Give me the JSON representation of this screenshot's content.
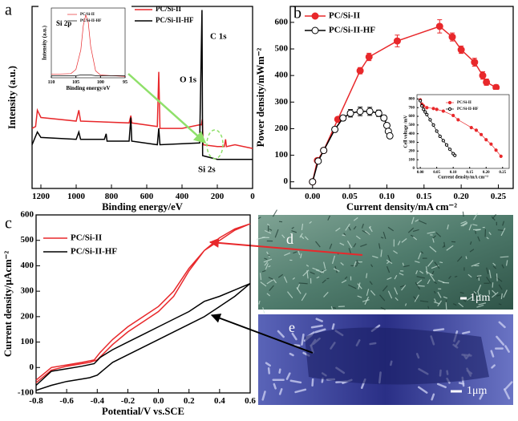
{
  "chart_data": [
    {
      "type": "line",
      "panel_label": "a",
      "xlabel": "Binding energy/eV",
      "ylabel": "Intensity (a.u.)",
      "xlim": [
        1250,
        0
      ],
      "ylim": [
        0,
        100
      ],
      "xticks": [
        1200,
        1000,
        800,
        600,
        400,
        200,
        0
      ],
      "series": [
        {
          "name": "PC/Si-II",
          "color": "#e8282b",
          "x": [
            1250,
            1230,
            1220,
            1200,
            1000,
            985,
            975,
            700,
            690,
            685,
            540,
            532,
            525,
            400,
            300,
            290,
            285,
            280,
            200,
            160,
            153,
            148,
            100,
            0
          ],
          "values": [
            33,
            34,
            43,
            39,
            37,
            43,
            37,
            36,
            40,
            36,
            34,
            64,
            33,
            33,
            35,
            35,
            38,
            24,
            23,
            23,
            27,
            23,
            24,
            22
          ]
        },
        {
          "name": "PC/Si-II-HF",
          "color": "#000000",
          "x": [
            1250,
            1220,
            1200,
            1000,
            985,
            975,
            840,
            830,
            825,
            700,
            690,
            685,
            540,
            532,
            525,
            300,
            287,
            283,
            200,
            0
          ],
          "values": [
            24,
            31,
            28,
            27,
            31,
            27,
            27,
            30,
            26,
            26,
            39,
            26,
            24,
            33,
            24,
            25,
            98,
            18,
            16,
            16
          ]
        }
      ],
      "annotations": [
        "O 1s",
        "C 1s",
        "Si 2s"
      ]
    },
    {
      "type": "line",
      "xlabel": "Binding energy/eV",
      "ylabel": "Intensity (a.u.)",
      "xlim": [
        110,
        95
      ],
      "ylim": [
        0,
        100
      ],
      "xticks": [
        110,
        105,
        100,
        95
      ],
      "series": [
        {
          "name": "PC/Si-II",
          "color": "#e8282b",
          "x": [
            110,
            106,
            105,
            104,
            103.5,
            103,
            102.5,
            102,
            101,
            100,
            95
          ],
          "values": [
            5,
            6,
            12,
            40,
            75,
            90,
            80,
            45,
            10,
            4,
            2
          ]
        },
        {
          "name": "PC/Si-II-HF",
          "color": "#000000",
          "x": [
            110,
            106,
            105,
            104,
            103.5,
            103,
            102.5,
            102,
            101,
            100,
            95
          ],
          "values": [
            3,
            3,
            3,
            4,
            4,
            4,
            4,
            4,
            3,
            3,
            3
          ]
        }
      ],
      "annotations": [
        "Si 2p"
      ]
    },
    {
      "type": "line",
      "panel_label": "b",
      "xlabel": "Current density/mA cm⁻²",
      "ylabel": "Power density/mWm⁻²",
      "xlim": [
        -0.03,
        0.27
      ],
      "ylim": [
        -25,
        660
      ],
      "markers": true,
      "xticks": [
        {
          "value": 0,
          "label": "0.00"
        },
        0.05,
        {
          "value": 0.1,
          "label": "0.10"
        },
        0.15,
        {
          "value": 0.2,
          "label": "0.20"
        },
        0.25
      ],
      "yticks": [
        0,
        100,
        200,
        300,
        400,
        500,
        600
      ],
      "series": [
        {
          "name": "PC/Si-II",
          "color": "#e8282b",
          "x": [
            0,
            0.0065,
            0.015,
            0.034,
            0.064,
            0.076,
            0.114,
            0.171,
            0.188,
            0.2,
            0.218,
            0.229,
            0.234,
            0.247
          ],
          "values": [
            0,
            80,
            118,
            235,
            418,
            470,
            530,
            585,
            545,
            497,
            450,
            400,
            375,
            355
          ],
          "errors": [
            0,
            5,
            6,
            8,
            12,
            14,
            22,
            25,
            15,
            14,
            15,
            14,
            12,
            10
          ]
        },
        {
          "name": "PC/Si-II-HF",
          "color": "#000000",
          "x": [
            0,
            0.0076,
            0.015,
            0.03,
            0.041,
            0.051,
            0.064,
            0.077,
            0.089,
            0.096,
            0.1,
            0.102,
            0.104
          ],
          "values": [
            0,
            78,
            118,
            197,
            240,
            258,
            265,
            265,
            258,
            240,
            212,
            190,
            173
          ],
          "errors": [
            0,
            4,
            5,
            8,
            10,
            14,
            16,
            15,
            12,
            10,
            8,
            6,
            5
          ]
        }
      ]
    },
    {
      "type": "line",
      "xlabel": "Current density/mA cm⁻²",
      "ylabel": "Cell voltage /mV",
      "xlim": [
        -0.01,
        0.27
      ],
      "ylim": [
        0,
        850
      ],
      "markers": true,
      "xticks": [
        {
          "value": 0,
          "label": "0.00"
        },
        0.05,
        {
          "value": 0.1,
          "label": "0.10"
        },
        0.15,
        {
          "value": 0.2,
          "label": "0.20"
        },
        0.25
      ],
      "yticks": [
        0,
        100,
        200,
        300,
        400,
        500,
        600,
        700,
        800
      ],
      "series": [
        {
          "name": "PC/Si-II",
          "color": "#e8282b",
          "x": [
            0,
            0.005,
            0.01,
            0.02,
            0.04,
            0.05,
            0.07,
            0.1,
            0.115,
            0.155,
            0.17,
            0.185,
            0.2,
            0.215,
            0.23,
            0.245
          ],
          "values": [
            790,
            740,
            720,
            700,
            690,
            680,
            660,
            610,
            560,
            470,
            440,
            390,
            330,
            280,
            210,
            140
          ]
        },
        {
          "name": "PC/Si-II-HF",
          "color": "#000000",
          "x": [
            0,
            0.005,
            0.01,
            0.015,
            0.02,
            0.03,
            0.04,
            0.05,
            0.06,
            0.07,
            0.08,
            0.09,
            0.1,
            0.105
          ],
          "values": [
            780,
            720,
            680,
            650,
            620,
            560,
            500,
            430,
            370,
            320,
            270,
            220,
            170,
            150
          ]
        }
      ]
    },
    {
      "type": "line",
      "panel_label": "c",
      "xlabel": "Potential/V vs.SCE",
      "ylabel": "Current density/μAcm⁻²",
      "xlim": [
        -0.8,
        0.6
      ],
      "ylim": [
        -100,
        600
      ],
      "xticks": [
        -0.8,
        -0.6,
        -0.4,
        -0.2,
        {
          "value": 0,
          "label": "0.0"
        },
        0.2,
        0.4,
        0.6
      ],
      "yticks": [
        -100,
        0,
        100,
        200,
        300,
        400,
        500,
        600
      ],
      "series": [
        {
          "name": "PC/Si-II",
          "color": "#e8282b",
          "x": [
            -0.8,
            -0.7,
            -0.6,
            -0.5,
            -0.42,
            -0.38,
            -0.3,
            -0.2,
            -0.1,
            0,
            0.1,
            0.2,
            0.3,
            0.4,
            0.5,
            0.6,
            0.5,
            0.4,
            0.3,
            0.2,
            0.1,
            0,
            -0.1,
            -0.2,
            -0.3,
            -0.4,
            -0.45,
            -0.5,
            -0.6,
            -0.7,
            -0.8
          ],
          "values": [
            -50,
            0,
            10,
            20,
            30,
            60,
            110,
            160,
            200,
            240,
            300,
            390,
            460,
            500,
            540,
            565,
            545,
            510,
            460,
            380,
            280,
            220,
            180,
            140,
            90,
            30,
            20,
            15,
            5,
            -10,
            -60
          ]
        },
        {
          "name": "PC/Si-II-HF",
          "color": "#000000",
          "x": [
            -0.8,
            -0.7,
            -0.6,
            -0.5,
            -0.42,
            -0.38,
            -0.3,
            -0.2,
            -0.1,
            0,
            0.1,
            0.2,
            0.3,
            0.4,
            0.5,
            0.6,
            0.5,
            0.4,
            0.3,
            0.2,
            0.1,
            0,
            -0.1,
            -0.2,
            -0.3,
            -0.4,
            -0.45,
            -0.5,
            -0.6,
            -0.7,
            -0.8
          ],
          "values": [
            -70,
            -15,
            -5,
            5,
            15,
            40,
            70,
            100,
            130,
            160,
            190,
            220,
            260,
            280,
            305,
            330,
            280,
            240,
            200,
            170,
            140,
            110,
            80,
            50,
            20,
            -30,
            -40,
            -45,
            -55,
            -70,
            -90
          ]
        }
      ]
    }
  ],
  "images": [
    {
      "label": "d",
      "scale": "1μm"
    },
    {
      "label": "e",
      "scale": "1μm"
    }
  ]
}
